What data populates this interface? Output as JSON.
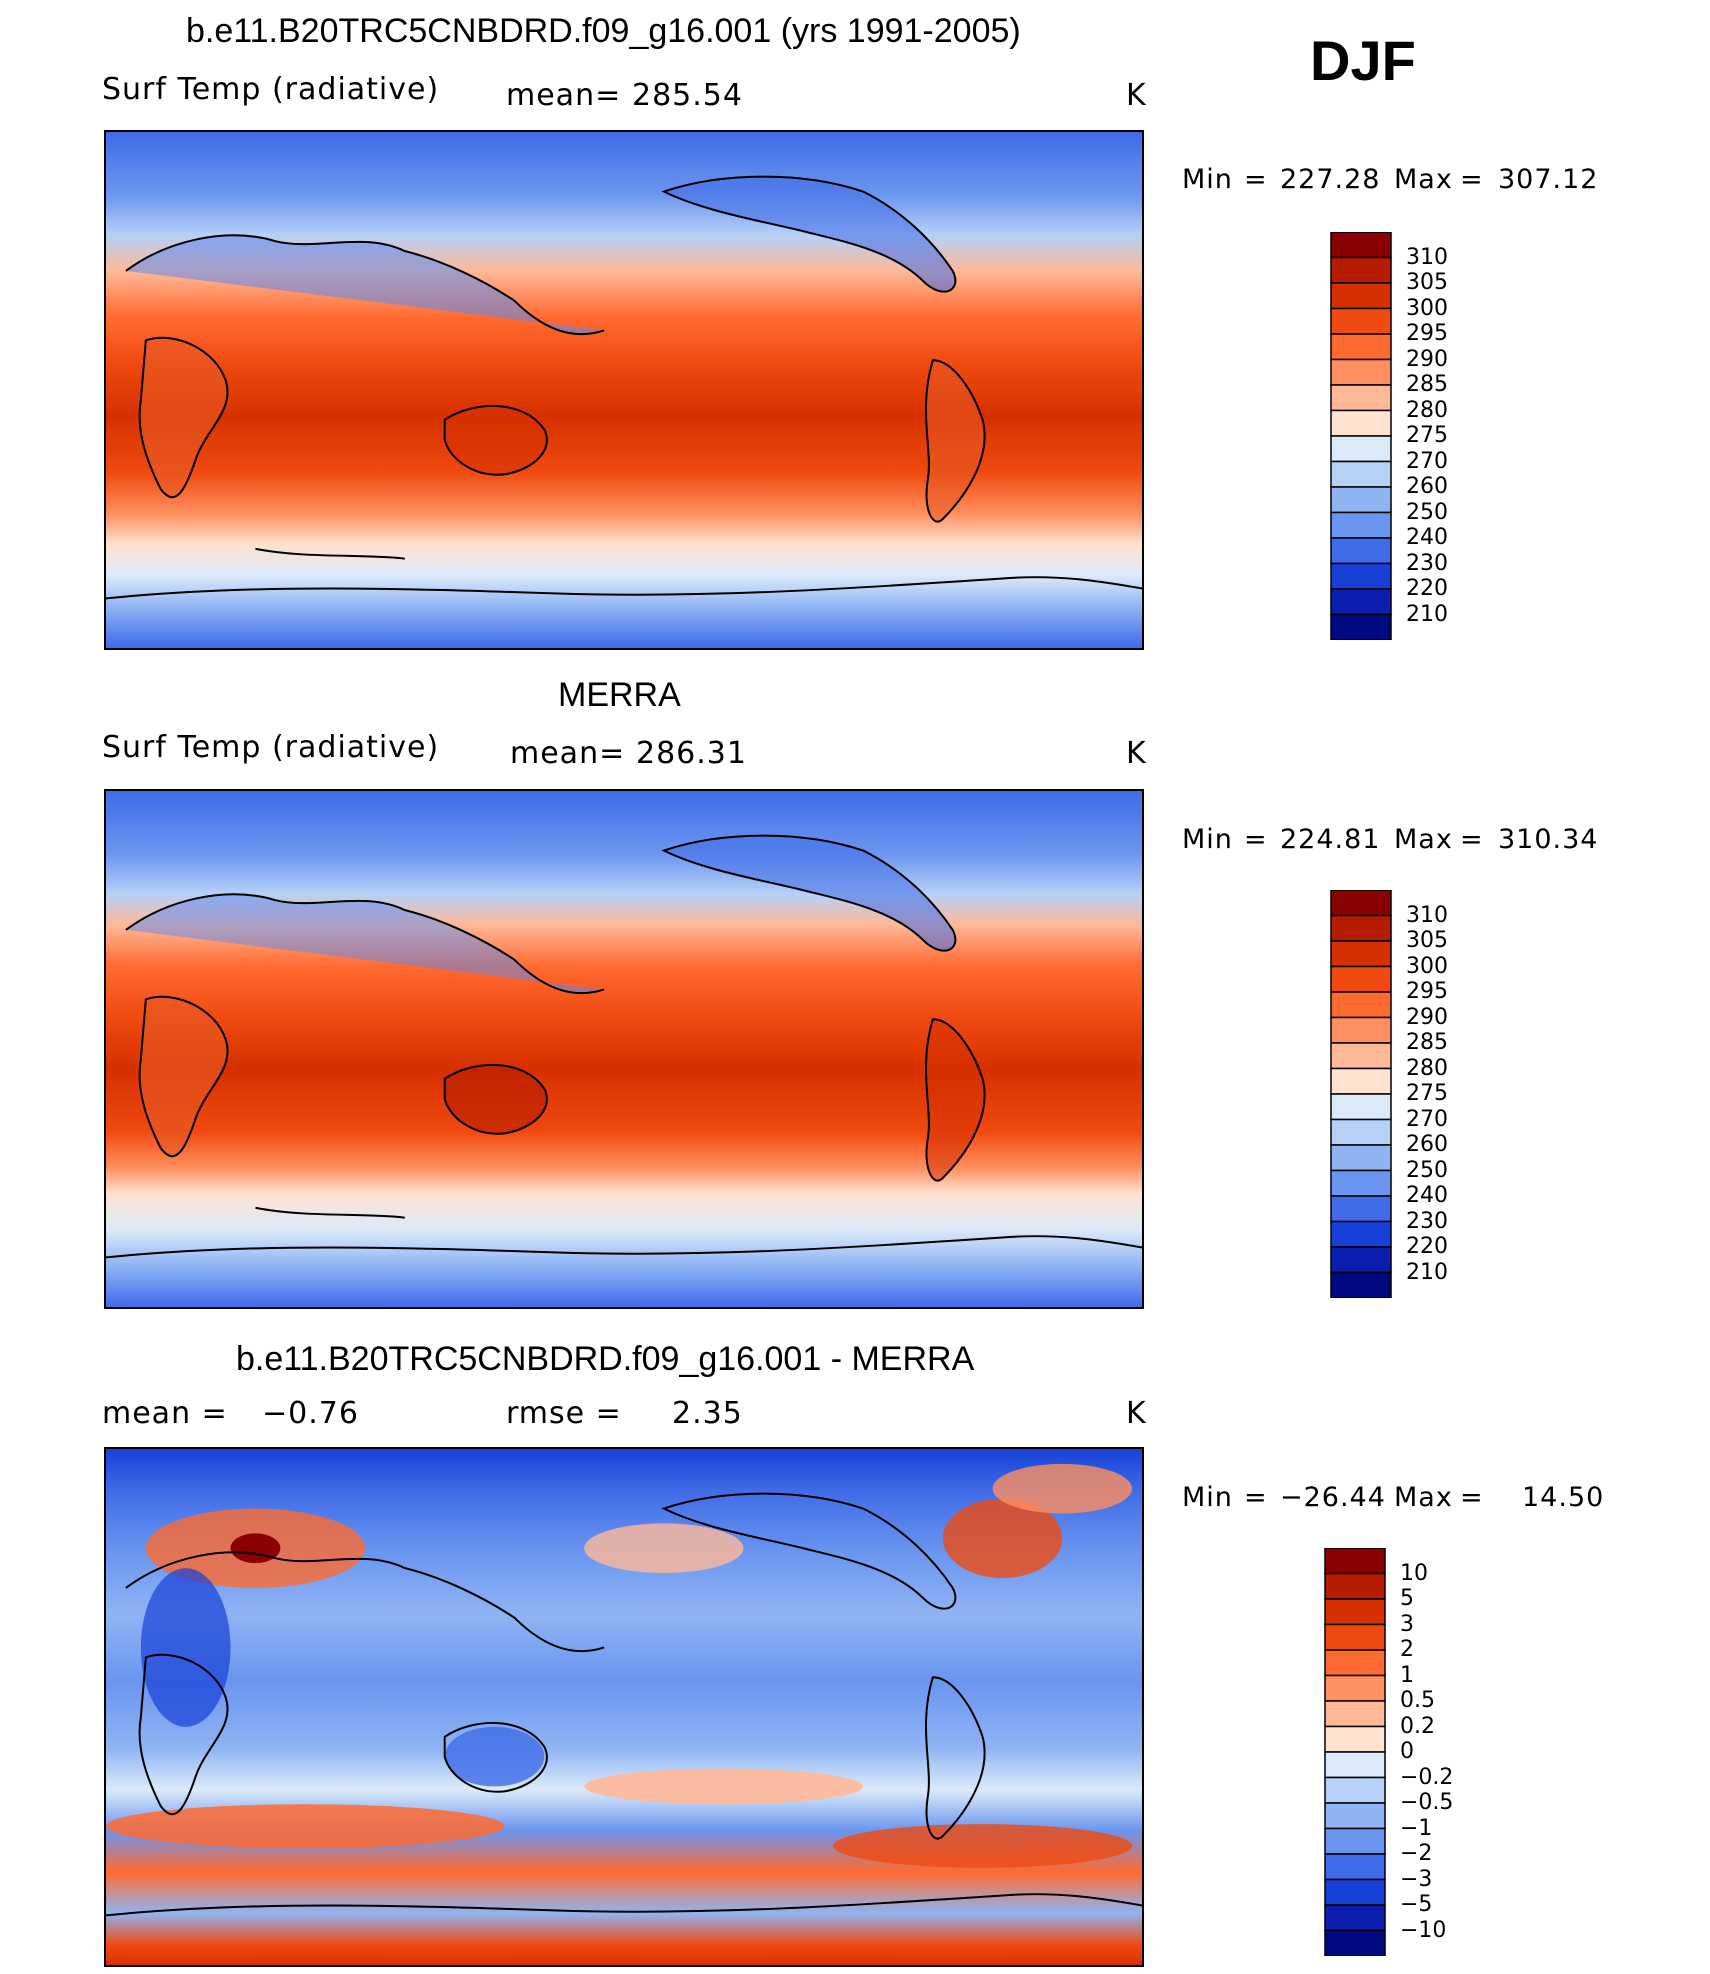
{
  "season": "DJF",
  "panels": [
    {
      "title": "b.e11.B20TRC5CNBDRD.f09_g16.001 (yrs 1991-2005)",
      "left_label": "Surf Temp (radiative)",
      "stat_label": "mean=",
      "stat_value": "285.54",
      "units": "K",
      "min_label": "Min",
      "min_value": "227.28",
      "max_label": "Max",
      "max_value": "307.12"
    },
    {
      "title": "MERRA",
      "left_label": "Surf Temp (radiative)",
      "stat_label": "mean=",
      "stat_value": "286.31",
      "units": "K",
      "min_label": "Min",
      "min_value": "224.81",
      "max_label": "Max",
      "max_value": "310.34"
    },
    {
      "title": "b.e11.B20TRC5CNBDRD.f09_g16.001 - MERRA",
      "left_label": "mean =",
      "left_value": "−0.76",
      "stat_label": "rmse =",
      "stat_value": "2.35",
      "units": "K",
      "min_label": "Min",
      "min_value": "−26.44",
      "max_label": "Max",
      "max_value": "14.50"
    }
  ],
  "abs_colorbar": {
    "levels": [
      "310",
      "305",
      "300",
      "295",
      "290",
      "285",
      "280",
      "275",
      "270",
      "260",
      "250",
      "240",
      "230",
      "220",
      "210"
    ],
    "colors": [
      "#8b0000",
      "#b61c00",
      "#d63000",
      "#f04a10",
      "#ff6a30",
      "#ff8f5f",
      "#ffb898",
      "#ffe2cf",
      "#dbeaf9",
      "#b6d0f7",
      "#8fb4f4",
      "#6a95f0",
      "#3f6be8",
      "#1740d8",
      "#0a1fb0",
      "#000a80"
    ]
  },
  "diff_colorbar": {
    "levels": [
      "10",
      "5",
      "3",
      "2",
      "1",
      "0.5",
      "0.2",
      "0",
      "−0.2",
      "−0.5",
      "−1",
      "−2",
      "−3",
      "−5",
      "−10"
    ],
    "colors": [
      "#8b0000",
      "#b61c00",
      "#d63000",
      "#f04a10",
      "#ff6a30",
      "#ff8f5f",
      "#ffb898",
      "#ffe2cf",
      "#dbeaf9",
      "#b6d0f7",
      "#8fb4f4",
      "#6a95f0",
      "#3f6be8",
      "#1740d8",
      "#0a1fb0",
      "#000a80"
    ]
  }
}
